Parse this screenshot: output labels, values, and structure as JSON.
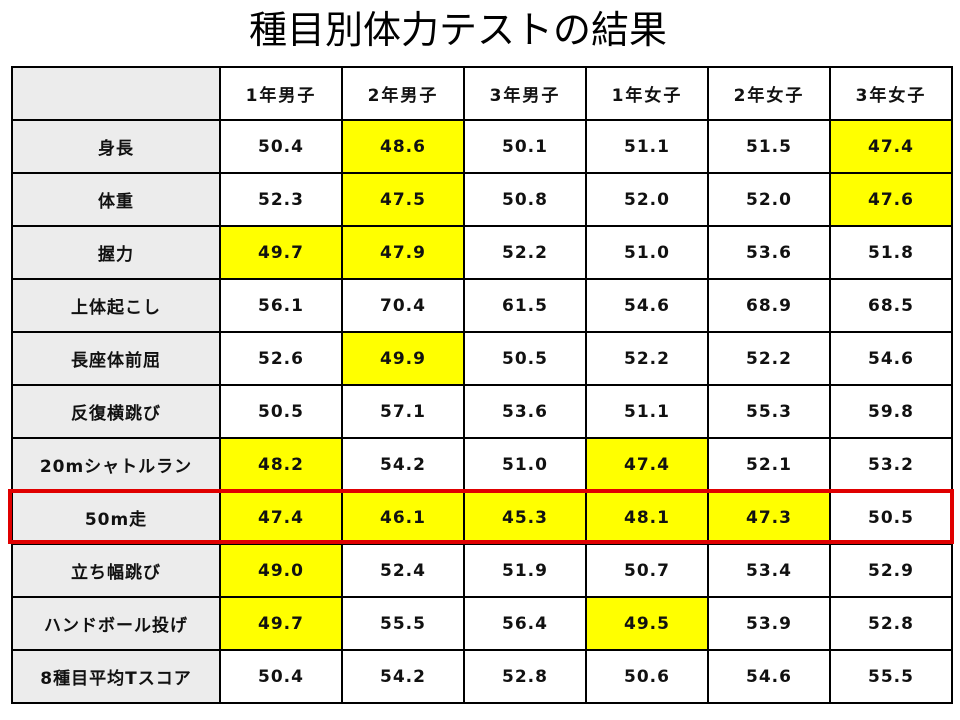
{
  "title": "種目別体力テストの結果",
  "highlight_color": "#ffff00",
  "emphasis_border_color": "#e00000",
  "emphasized_row": "50m走",
  "columns": [
    "",
    "1年男子",
    "2年男子",
    "3年男子",
    "1年女子",
    "2年女子",
    "3年女子"
  ],
  "rows": [
    {
      "label": "身長",
      "values": [
        "50.4",
        "48.6",
        "50.1",
        "51.1",
        "51.5",
        "47.4"
      ],
      "highlighted": [
        false,
        true,
        false,
        false,
        false,
        true
      ]
    },
    {
      "label": "体重",
      "values": [
        "52.3",
        "47.5",
        "50.8",
        "52.0",
        "52.0",
        "47.6"
      ],
      "highlighted": [
        false,
        true,
        false,
        false,
        false,
        true
      ]
    },
    {
      "label": "握力",
      "values": [
        "49.7",
        "47.9",
        "52.2",
        "51.0",
        "53.6",
        "51.8"
      ],
      "highlighted": [
        true,
        true,
        false,
        false,
        false,
        false
      ]
    },
    {
      "label": "上体起こし",
      "values": [
        "56.1",
        "70.4",
        "61.5",
        "54.6",
        "68.9",
        "68.5"
      ],
      "highlighted": [
        false,
        false,
        false,
        false,
        false,
        false
      ]
    },
    {
      "label": "長座体前屈",
      "values": [
        "52.6",
        "49.9",
        "50.5",
        "52.2",
        "52.2",
        "54.6"
      ],
      "highlighted": [
        false,
        true,
        false,
        false,
        false,
        false
      ]
    },
    {
      "label": "反復横跳び",
      "values": [
        "50.5",
        "57.1",
        "53.6",
        "51.1",
        "55.3",
        "59.8"
      ],
      "highlighted": [
        false,
        false,
        false,
        false,
        false,
        false
      ]
    },
    {
      "label": "20mシャトルラン",
      "values": [
        "48.2",
        "54.2",
        "51.0",
        "47.4",
        "52.1",
        "53.2"
      ],
      "highlighted": [
        true,
        false,
        false,
        true,
        false,
        false
      ]
    },
    {
      "label": "50m走",
      "values": [
        "47.4",
        "46.1",
        "45.3",
        "48.1",
        "47.3",
        "50.5"
      ],
      "highlighted": [
        true,
        true,
        true,
        true,
        true,
        false
      ]
    },
    {
      "label": "立ち幅跳び",
      "values": [
        "49.0",
        "52.4",
        "51.9",
        "50.7",
        "53.4",
        "52.9"
      ],
      "highlighted": [
        true,
        false,
        false,
        false,
        false,
        false
      ]
    },
    {
      "label": "ハンドボール投げ",
      "values": [
        "49.7",
        "55.5",
        "56.4",
        "49.5",
        "53.9",
        "52.8"
      ],
      "highlighted": [
        true,
        false,
        false,
        true,
        false,
        false
      ]
    },
    {
      "label": "8種目平均Tスコア",
      "values": [
        "50.4",
        "54.2",
        "52.8",
        "50.6",
        "54.6",
        "55.5"
      ],
      "highlighted": [
        false,
        false,
        false,
        false,
        false,
        false
      ]
    }
  ]
}
